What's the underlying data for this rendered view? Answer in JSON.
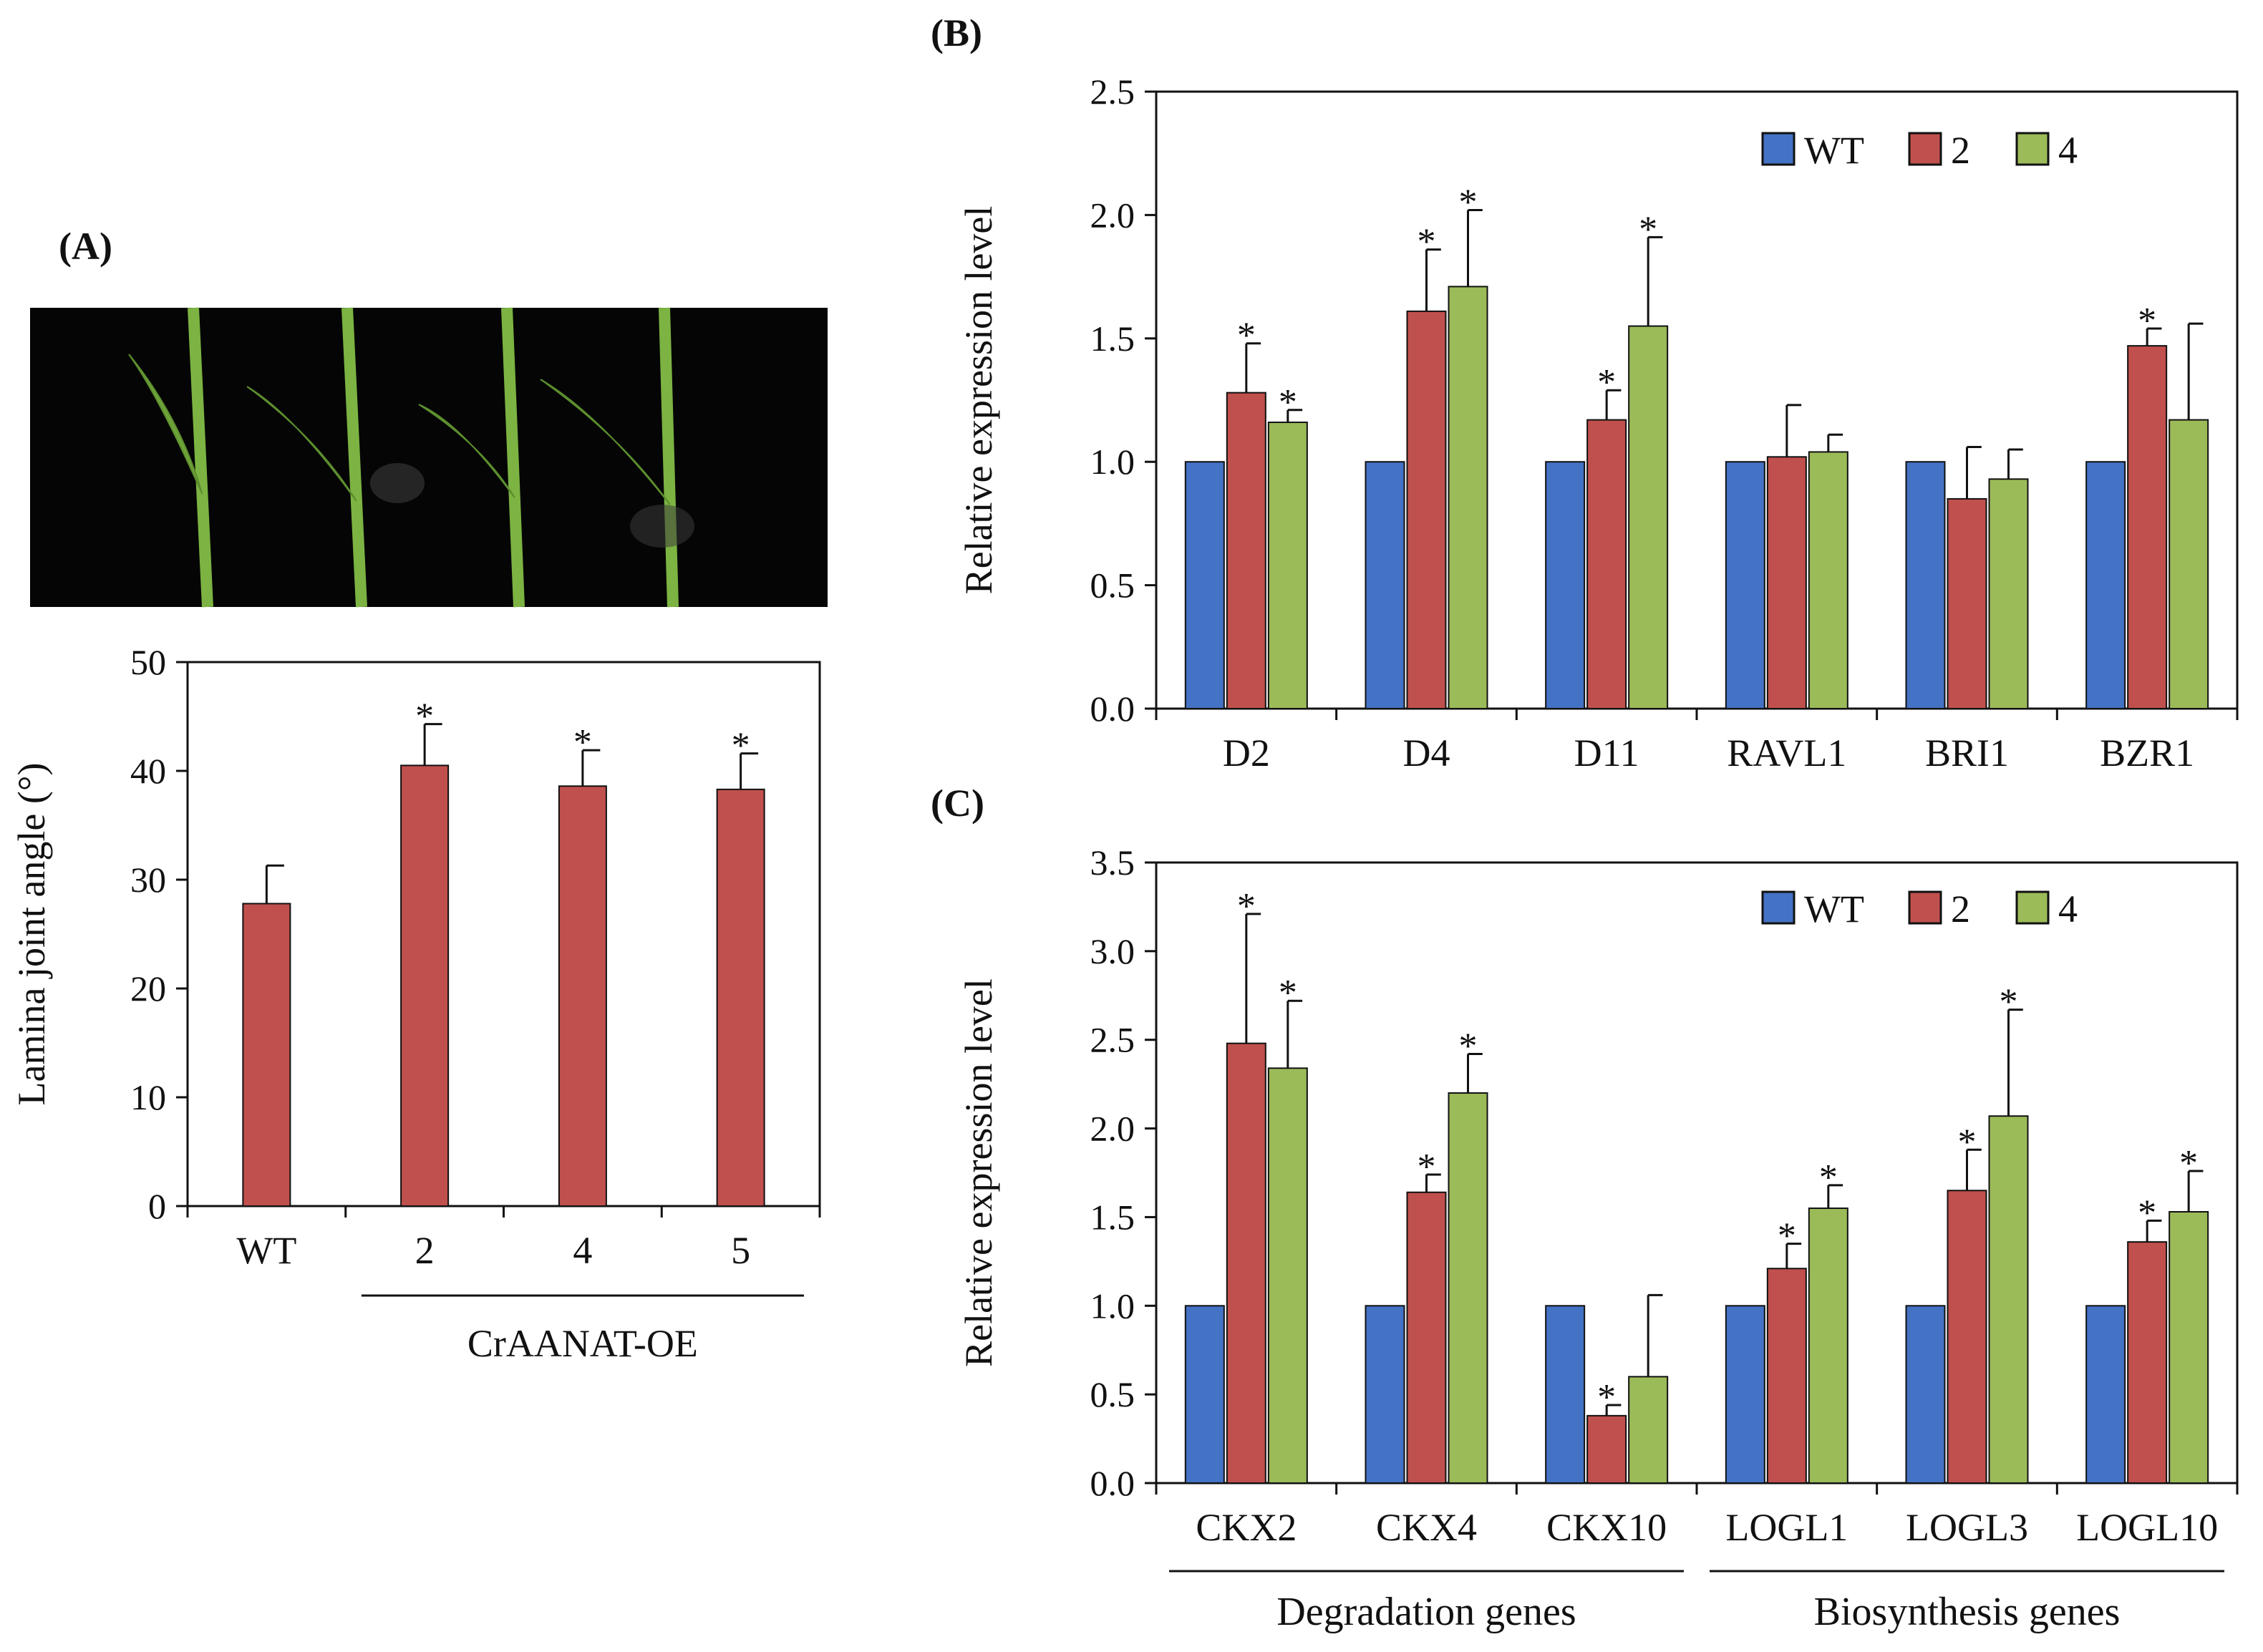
{
  "panels": {
    "a_label": "(A)",
    "b_label": "(B)",
    "c_label": "(C)"
  },
  "photo": {
    "name": "lamina-joint-photo",
    "plants": 4
  },
  "colors": {
    "wt": "#4472C4",
    "line2": "#C0504D",
    "line4": "#9BBB59",
    "bar_a": "#C0504D",
    "ink": "#111111",
    "background": "#050505",
    "stem": "#7CB342"
  },
  "chart_data": [
    {
      "id": "A",
      "type": "bar",
      "title": "",
      "ylabel": "Lamina joint angle (°)",
      "ylim": [
        0,
        50
      ],
      "yticks": [
        "0",
        "10",
        "20",
        "30",
        "40",
        "50"
      ],
      "categories": [
        "WT",
        "2",
        "4",
        "5"
      ],
      "series": [
        {
          "name": "angle",
          "values": [
            27.8,
            40.5,
            38.6,
            38.3
          ],
          "errors": [
            3.5,
            3.8,
            3.3,
            3.3
          ]
        }
      ],
      "sig": [
        false,
        true,
        true,
        true
      ],
      "group_label": "CrAANAT-OE",
      "grid": false
    },
    {
      "id": "B",
      "type": "bar",
      "title": "",
      "ylabel": "Relative expression level",
      "ylim": [
        0,
        2.5
      ],
      "yticks": [
        "0.0",
        "0.5",
        "1.0",
        "1.5",
        "2.0",
        "2.5"
      ],
      "categories": [
        "D2",
        "D4",
        "D11",
        "RAVL1",
        "BRI1",
        "BZR1"
      ],
      "legend": [
        "WT",
        "2",
        "4"
      ],
      "legend_position": "top-right",
      "series": [
        {
          "name": "WT",
          "values": [
            1.0,
            1.0,
            1.0,
            1.0,
            1.0,
            1.0
          ],
          "errors": [
            0,
            0,
            0,
            0,
            0,
            0
          ]
        },
        {
          "name": "2",
          "values": [
            1.28,
            1.61,
            1.17,
            1.02,
            0.85,
            1.47
          ],
          "errors": [
            0.2,
            0.25,
            0.12,
            0.21,
            0.21,
            0.07
          ]
        },
        {
          "name": "4",
          "values": [
            1.16,
            1.71,
            1.55,
            1.04,
            0.93,
            1.17
          ],
          "errors": [
            0.05,
            0.31,
            0.36,
            0.07,
            0.12,
            0.39
          ]
        }
      ],
      "sig": [
        [
          false,
          true,
          true
        ],
        [
          false,
          true,
          true
        ],
        [
          false,
          true,
          true
        ],
        [
          false,
          false,
          false
        ],
        [
          false,
          false,
          false
        ],
        [
          false,
          true,
          false
        ]
      ],
      "grid": false
    },
    {
      "id": "C",
      "type": "bar",
      "title": "",
      "ylabel": "Relative expression level",
      "ylim": [
        0,
        3.5
      ],
      "yticks": [
        "0.0",
        "0.5",
        "1.0",
        "1.5",
        "2.0",
        "2.5",
        "3.0",
        "3.5"
      ],
      "categories": [
        "CKX2",
        "CKX4",
        "CKX10",
        "LOGL1",
        "LOGL3",
        "LOGL10"
      ],
      "legend": [
        "WT",
        "2",
        "4"
      ],
      "legend_position": "top-right",
      "series": [
        {
          "name": "WT",
          "values": [
            1.0,
            1.0,
            1.0,
            1.0,
            1.0,
            1.0
          ],
          "errors": [
            0,
            0,
            0,
            0,
            0,
            0
          ]
        },
        {
          "name": "2",
          "values": [
            2.48,
            1.64,
            0.38,
            1.21,
            1.65,
            1.36
          ],
          "errors": [
            0.73,
            0.1,
            0.06,
            0.14,
            0.23,
            0.12
          ]
        },
        {
          "name": "4",
          "values": [
            2.34,
            2.2,
            0.6,
            1.55,
            2.07,
            1.53
          ],
          "errors": [
            0.38,
            0.22,
            0.46,
            0.13,
            0.6,
            0.23
          ]
        }
      ],
      "sig": [
        [
          false,
          true,
          true
        ],
        [
          false,
          true,
          true
        ],
        [
          false,
          true,
          false
        ],
        [
          false,
          true,
          true
        ],
        [
          false,
          true,
          true
        ],
        [
          false,
          true,
          true
        ]
      ],
      "groups": [
        {
          "label": "Degradation genes",
          "span": [
            0,
            2
          ]
        },
        {
          "label": "Biosynthesis genes",
          "span": [
            3,
            5
          ]
        }
      ],
      "grid": false
    }
  ]
}
